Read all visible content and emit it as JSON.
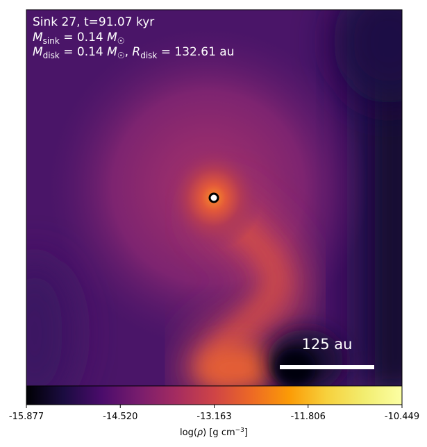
{
  "chart_data": {
    "type": "heatmap",
    "title": "",
    "annotations": {
      "line1": "Sink 27, t=91.07 kyr",
      "line2_math": "M_sink = 0.14 M_☉",
      "line3_math": "M_disk = 0.14 M_☉, R_disk = 132.61 au",
      "sink_id": 27,
      "time_kyr": 91.07,
      "M_sink_Msun": 0.14,
      "M_disk_Msun": 0.14,
      "R_disk_au": 132.61
    },
    "scale_bar": {
      "label": "125 au",
      "length_au": 125
    },
    "colormap": "inferno",
    "colorbar": {
      "label": "log(ρ) [g cm⁻³]",
      "range": [
        -15.877,
        -10.449
      ],
      "ticks": [
        "-15.877",
        "-14.520",
        "-13.163",
        "-11.806",
        "-10.449"
      ],
      "tick_values": [
        -15.877,
        -14.52,
        -13.163,
        -11.806,
        -10.449
      ]
    },
    "sink_marker": {
      "shape": "ring",
      "color": "#ffffff"
    }
  }
}
